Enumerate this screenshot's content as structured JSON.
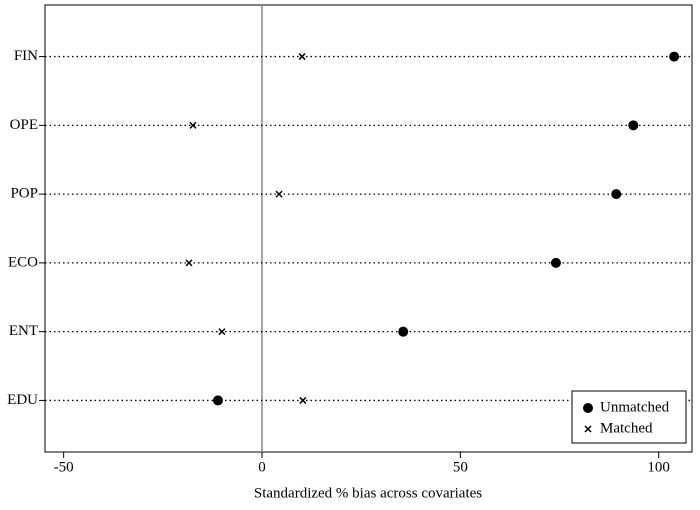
{
  "chart_data": {
    "type": "dot",
    "xlabel": "Standardized % bias across covariates",
    "categories": [
      "FIN",
      "OPE",
      "POP",
      "ECO",
      "ENT",
      "EDU"
    ],
    "series": [
      {
        "name": "Unmatched",
        "color": "#000000",
        "marker": "circle",
        "values": [
          103.9,
          93.6,
          89.3,
          74.1,
          35.6,
          -11.1
        ]
      },
      {
        "name": "Matched",
        "color": "#000000",
        "marker": "x",
        "values": [
          10.1,
          -17.4,
          4.3,
          -18.4,
          -10.1,
          10.3
        ]
      }
    ],
    "xlim": [
      -54.7,
      108.4
    ],
    "xticks": [
      -50,
      0,
      50,
      100
    ],
    "reference_line": 0,
    "grid": true,
    "legend": "bottom-right"
  }
}
